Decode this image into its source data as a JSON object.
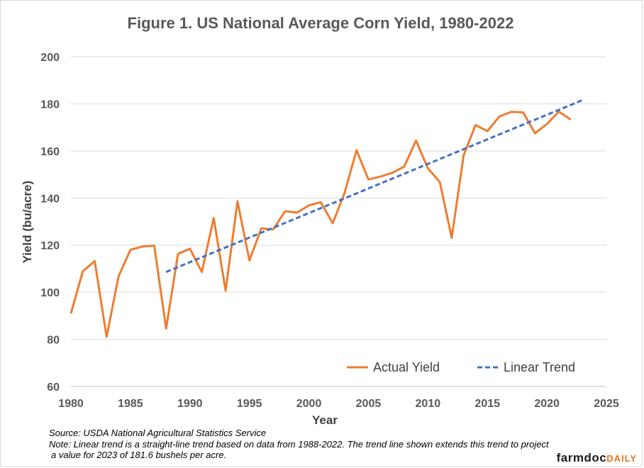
{
  "chart_data": {
    "type": "line",
    "title": "Figure 1. US National Average Corn Yield, 1980-2022",
    "xlabel": "Year",
    "ylabel": "Yield (bu/acre)",
    "xlim": [
      1980,
      2025
    ],
    "ylim": [
      60,
      200
    ],
    "x_ticks": [
      1980,
      1985,
      1990,
      1995,
      2000,
      2005,
      2010,
      2015,
      2020,
      2025
    ],
    "y_ticks": [
      60,
      80,
      100,
      120,
      140,
      160,
      180,
      200
    ],
    "grid": "horizontal",
    "legend_position": "bottom-right",
    "series": [
      {
        "name": "Actual Yield",
        "style": "solid",
        "color": "#ED7D31",
        "x": [
          1980,
          1981,
          1982,
          1983,
          1984,
          1985,
          1986,
          1987,
          1988,
          1989,
          1990,
          1991,
          1992,
          1993,
          1994,
          1995,
          1996,
          1997,
          1998,
          1999,
          2000,
          2001,
          2002,
          2003,
          2004,
          2005,
          2006,
          2007,
          2008,
          2009,
          2010,
          2011,
          2012,
          2013,
          2014,
          2015,
          2016,
          2017,
          2018,
          2019,
          2020,
          2021,
          2022
        ],
        "y": [
          91.0,
          108.9,
          113.2,
          81.1,
          106.7,
          118.0,
          119.4,
          119.8,
          84.6,
          116.3,
          118.5,
          108.6,
          131.5,
          100.7,
          138.6,
          113.5,
          127.1,
          126.7,
          134.4,
          133.8,
          136.9,
          138.2,
          129.3,
          142.2,
          160.3,
          147.9,
          149.1,
          150.7,
          153.3,
          164.4,
          152.6,
          146.8,
          123.1,
          158.1,
          171.0,
          168.4,
          174.6,
          176.6,
          176.4,
          167.5,
          171.4,
          176.7,
          173.3
        ]
      },
      {
        "name": "Linear Trend",
        "style": "dashed",
        "color": "#4472C4",
        "x": [
          1988,
          2023
        ],
        "y": [
          108.6,
          181.6
        ]
      }
    ]
  },
  "notes": {
    "source": "Source: USDA National Agricultural Statistics Service",
    "note_line1": "Note: Linear trend is a straight-line trend based on data from 1988-2022. The trend line shown extends this trend to project",
    "note_line2": "a value for 2023 of 181.6 bushels per acre."
  },
  "brand": {
    "main": "farmdoc",
    "suffix": "DAILY"
  }
}
